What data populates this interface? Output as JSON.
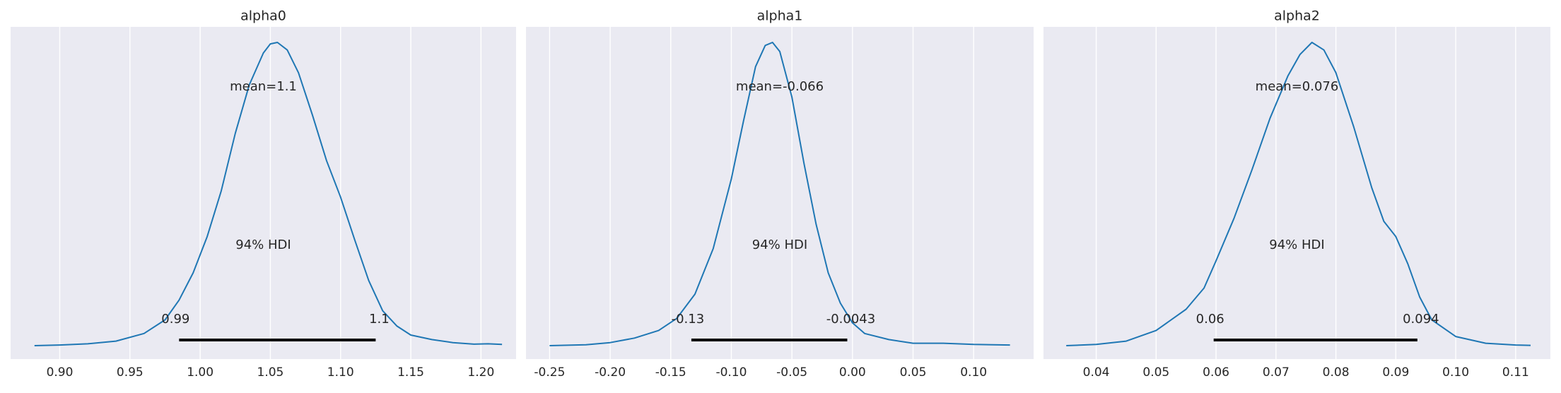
{
  "chart_data": [
    {
      "type": "area",
      "title": "alpha0",
      "mean_label": "mean=1.1",
      "hdi_label": "94% HDI",
      "hdi": [
        0.985,
        1.125
      ],
      "hdi_labels": [
        "0.99",
        "1.1"
      ],
      "xlim": [
        0.865,
        1.225
      ],
      "x_ticks": [
        0.9,
        0.95,
        1.0,
        1.05,
        1.1,
        1.15,
        1.2
      ],
      "x_tick_labels": [
        "0.90",
        "0.95",
        "1.00",
        "1.05",
        "1.10",
        "1.15",
        "1.20"
      ],
      "ylim": [
        0,
        1.05
      ],
      "x": [
        0.882,
        0.9,
        0.92,
        0.94,
        0.96,
        0.975,
        0.985,
        0.995,
        1.005,
        1.015,
        1.025,
        1.035,
        1.045,
        1.05,
        1.055,
        1.062,
        1.07,
        1.08,
        1.09,
        1.1,
        1.11,
        1.12,
        1.13,
        1.14,
        1.15,
        1.165,
        1.18,
        1.195,
        1.205,
        1.215
      ],
      "density": [
        0.0,
        0.002,
        0.006,
        0.015,
        0.04,
        0.085,
        0.15,
        0.24,
        0.36,
        0.51,
        0.7,
        0.86,
        0.965,
        0.995,
        1.0,
        0.975,
        0.9,
        0.76,
        0.61,
        0.49,
        0.35,
        0.215,
        0.115,
        0.065,
        0.035,
        0.02,
        0.01,
        0.005,
        0.006,
        0.004
      ]
    },
    {
      "type": "area",
      "title": "alpha1",
      "mean_label": "mean=-0.066",
      "hdi_label": "94% HDI",
      "hdi": [
        -0.133,
        -0.0043
      ],
      "hdi_labels": [
        "-0.13",
        "-0.0043"
      ],
      "xlim": [
        -0.2695,
        0.1495
      ],
      "x_ticks": [
        -0.25,
        -0.2,
        -0.15,
        -0.1,
        -0.05,
        0.0,
        0.05,
        0.1
      ],
      "x_tick_labels": [
        "-0.25",
        "-0.20",
        "-0.15",
        "-0.10",
        "-0.05",
        "0.00",
        "0.05",
        "0.10"
      ],
      "ylim": [
        0,
        1.05
      ],
      "x": [
        -0.25,
        -0.22,
        -0.2,
        -0.18,
        -0.16,
        -0.145,
        -0.13,
        -0.115,
        -0.1,
        -0.09,
        -0.08,
        -0.072,
        -0.066,
        -0.06,
        -0.05,
        -0.04,
        -0.03,
        -0.02,
        -0.01,
        0.0,
        0.01,
        0.03,
        0.05,
        0.075,
        0.1,
        0.13
      ],
      "density": [
        0.0,
        0.003,
        0.01,
        0.025,
        0.05,
        0.09,
        0.17,
        0.32,
        0.55,
        0.74,
        0.92,
        0.99,
        1.0,
        0.97,
        0.82,
        0.6,
        0.4,
        0.24,
        0.14,
        0.075,
        0.04,
        0.02,
        0.008,
        0.008,
        0.004,
        0.002
      ]
    },
    {
      "type": "area",
      "title": "alpha2",
      "mean_label": "mean=0.076",
      "hdi_label": "94% HDI",
      "hdi": [
        0.0596,
        0.0936
      ],
      "hdi_labels": [
        "0.06",
        "0.094"
      ],
      "xlim": [
        0.0312,
        0.1158
      ],
      "x_ticks": [
        0.04,
        0.05,
        0.06,
        0.07,
        0.08,
        0.09,
        0.1,
        0.11
      ],
      "x_tick_labels": [
        "0.04",
        "0.05",
        "0.06",
        "0.07",
        "0.08",
        "0.09",
        "0.10",
        "0.11"
      ],
      "ylim": [
        0,
        1.05
      ],
      "x": [
        0.035,
        0.04,
        0.045,
        0.05,
        0.055,
        0.058,
        0.06,
        0.063,
        0.066,
        0.069,
        0.072,
        0.074,
        0.076,
        0.078,
        0.08,
        0.083,
        0.086,
        0.088,
        0.09,
        0.092,
        0.094,
        0.096,
        0.1,
        0.105,
        0.11,
        0.1125
      ],
      "density": [
        0.0,
        0.004,
        0.015,
        0.05,
        0.12,
        0.19,
        0.28,
        0.42,
        0.58,
        0.75,
        0.89,
        0.96,
        1.0,
        0.975,
        0.9,
        0.72,
        0.52,
        0.41,
        0.36,
        0.27,
        0.16,
        0.085,
        0.03,
        0.008,
        0.002,
        0.001
      ]
    }
  ]
}
